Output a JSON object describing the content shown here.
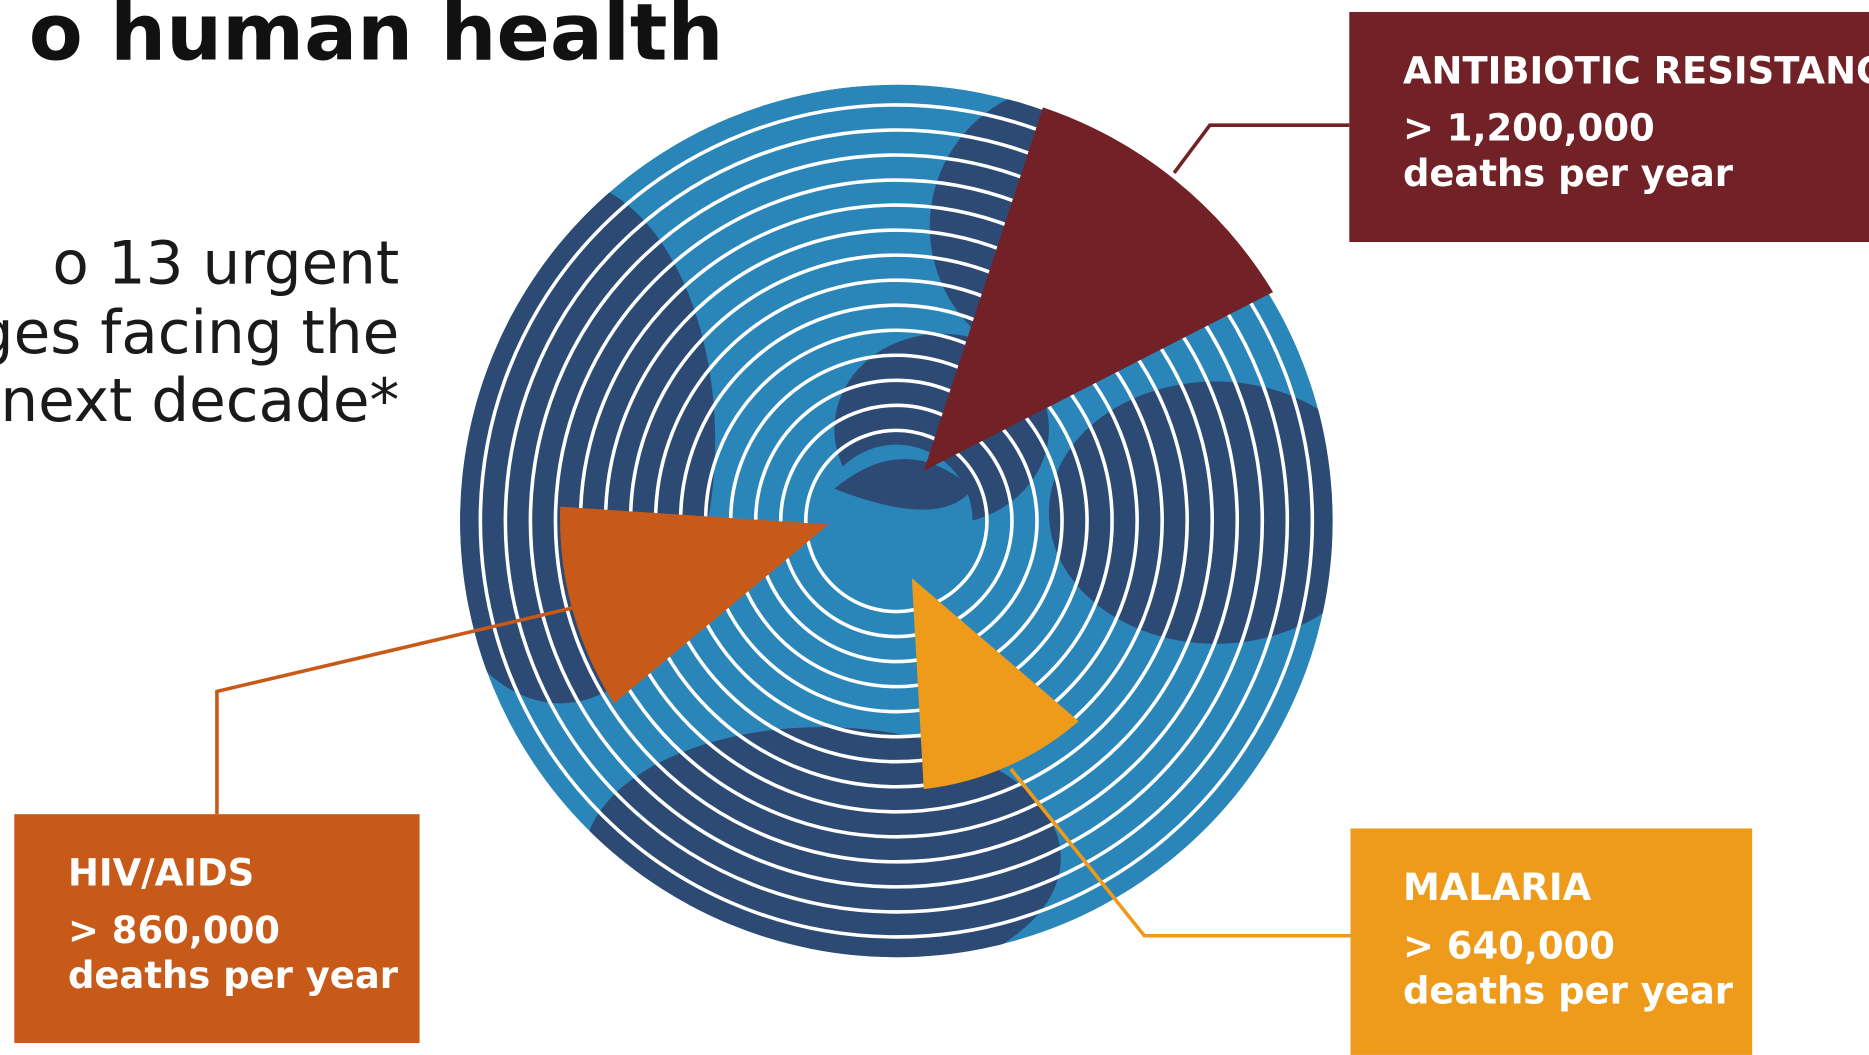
{
  "header": {
    "title": "o human health"
  },
  "intro": {
    "lines": [
      "o 13 urgent",
      "ges facing the",
      "e next decade*"
    ]
  },
  "callouts": [
    {
      "label": "ANTIBIOTIC RESISTANCE",
      "value": "> 1,200,000",
      "unit": "deaths per year"
    },
    {
      "label": "HIV/AIDS",
      "value": "> 860,000",
      "unit": "deaths per year"
    },
    {
      "label": "MALARIA",
      "value": "> 640,000",
      "unit": "deaths per year"
    }
  ]
}
